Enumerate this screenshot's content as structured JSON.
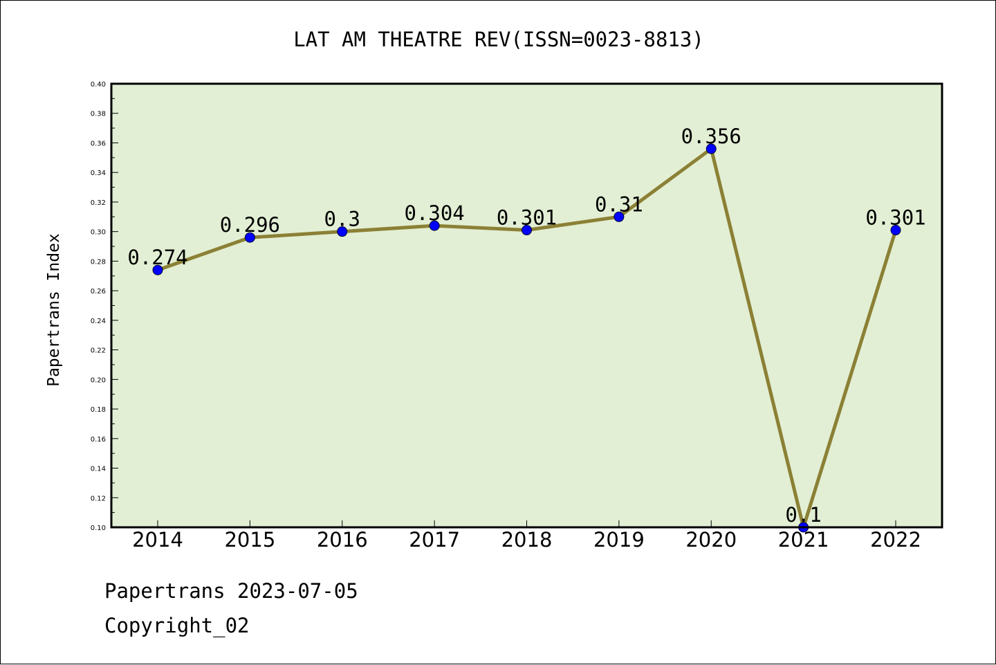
{
  "chart_data": {
    "type": "line",
    "title": "LAT AM THEATRE REV(ISSN=0023-8813)",
    "xlabel": "",
    "ylabel": "Papertrans Index",
    "categories": [
      "2014",
      "2015",
      "2016",
      "2017",
      "2018",
      "2019",
      "2020",
      "2021",
      "2022"
    ],
    "values": [
      0.274,
      0.296,
      0.3,
      0.304,
      0.301,
      0.31,
      0.356,
      0.1,
      0.301
    ],
    "data_labels": [
      "0.274",
      "0.296",
      "0.3",
      "0.304",
      "0.301",
      "0.31",
      "0.356",
      "0.1",
      "0.301"
    ],
    "ylim": [
      0.1,
      0.4
    ],
    "yticks": [
      "0.10",
      "0.12",
      "0.14",
      "0.16",
      "0.18",
      "0.20",
      "0.22",
      "0.24",
      "0.26",
      "0.28",
      "0.30",
      "0.32",
      "0.34",
      "0.36",
      "0.38",
      "0.40"
    ],
    "grid": false,
    "legend": "none",
    "colors": {
      "plot_background": "#e2efd4",
      "line": "#8b8035",
      "marker": "#0000ff"
    }
  },
  "footer": {
    "date_line": "Papertrans 2023-07-05",
    "copyright": "Copyright_02"
  }
}
